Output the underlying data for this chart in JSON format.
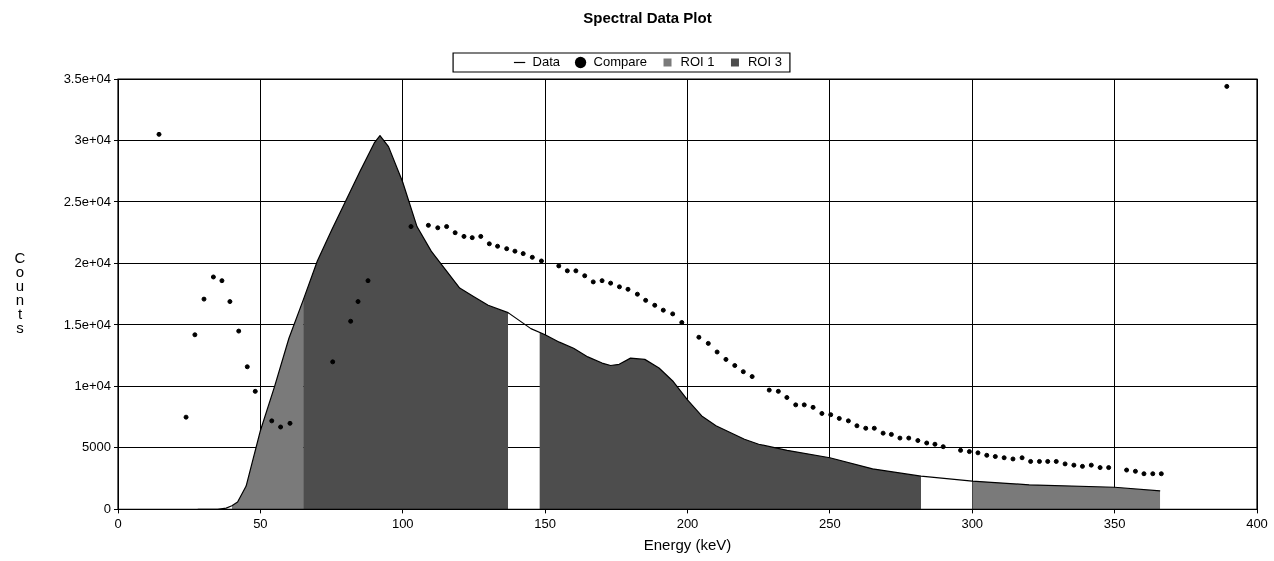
{
  "chart_data": {
    "type": "line",
    "title": "Spectral Data Plot",
    "xlabel": "Energy (keV)",
    "ylabel": "Counts",
    "legend": "top",
    "grid": true,
    "xlim": [
      0,
      400
    ],
    "xticks": [
      0,
      50,
      100,
      150,
      200,
      250,
      300,
      350,
      400
    ],
    "ylim": [
      0,
      35000
    ],
    "yticks": [
      {
        "value": 0,
        "label": "0"
      },
      {
        "value": 5000,
        "label": "5000"
      },
      {
        "value": 10000,
        "label": "1e+04"
      },
      {
        "value": 15000,
        "label": "1.5e+04"
      },
      {
        "value": 20000,
        "label": "2e+04"
      },
      {
        "value": 25000,
        "label": "2.5e+04"
      },
      {
        "value": 30000,
        "label": "3e+04"
      },
      {
        "value": 35000,
        "label": "3.5e+04"
      }
    ],
    "series": [
      {
        "name": "Data",
        "type": "line",
        "marker": "none",
        "color": "#000000",
        "x": [
          28,
          35,
          38,
          40,
          42,
          45,
          50,
          55,
          60,
          65,
          70,
          75,
          80,
          85,
          90,
          92,
          95,
          100,
          105,
          110,
          115,
          120,
          125,
          130,
          137,
          145,
          150,
          155,
          160,
          165,
          170,
          173,
          176,
          180,
          185,
          190,
          195,
          200,
          205,
          210,
          220,
          225,
          235,
          250,
          265,
          282,
          300,
          320,
          350,
          366
        ],
        "values": [
          0,
          0,
          100,
          300,
          600,
          1900,
          6400,
          10000,
          13900,
          17000,
          20200,
          22700,
          25100,
          27500,
          29800,
          30400,
          29500,
          26600,
          23000,
          21000,
          19500,
          18000,
          17300,
          16600,
          16000,
          14700,
          14200,
          13600,
          13100,
          12400,
          11900,
          11700,
          11800,
          12300,
          12200,
          11500,
          10400,
          8900,
          7600,
          6800,
          5700,
          5300,
          4800,
          4200,
          3300,
          2700,
          2300,
          2000,
          1800,
          1500
        ]
      },
      {
        "name": "Compare",
        "type": "scatter",
        "marker": "circle",
        "color": "#000000",
        "x": [
          14.4,
          23.9,
          27.0,
          30.2,
          33.5,
          36.5,
          39.3,
          42.4,
          45.4,
          48.2,
          54.0,
          57.1,
          60.4,
          75.4,
          81.7,
          84.3,
          87.8,
          102.9,
          109.0,
          112.3,
          115.4,
          118.4,
          121.5,
          124.4,
          127.4,
          130.4,
          133.3,
          136.5,
          139.4,
          142.3,
          145.5,
          148.7,
          154.8,
          157.8,
          160.8,
          163.9,
          166.9,
          170.0,
          173.0,
          176.1,
          179.1,
          182.4,
          185.3,
          188.5,
          191.5,
          194.8,
          198.0,
          204.0,
          207.3,
          210.4,
          213.5,
          216.6,
          219.6,
          222.7,
          228.7,
          231.9,
          234.9,
          238.0,
          241.0,
          244.1,
          247.2,
          250.3,
          253.3,
          256.5,
          259.5,
          262.6,
          265.6,
          268.7,
          271.6,
          274.6,
          277.7,
          280.9,
          284.0,
          286.9,
          289.8,
          295.9,
          299.0,
          302.0,
          305.1,
          308.1,
          311.2,
          314.3,
          317.5,
          320.5,
          323.6,
          326.5,
          329.5,
          332.6,
          335.7,
          338.7,
          341.8,
          344.9,
          347.9,
          354.2,
          357.3,
          360.3,
          363.4,
          366.4,
          389.4
        ],
        "values": [
          30500,
          7500,
          14200,
          17100,
          18900,
          18600,
          16900,
          14500,
          11600,
          9600,
          7200,
          6700,
          7000,
          12000,
          15300,
          16900,
          18600,
          23000,
          23100,
          22900,
          23000,
          22500,
          22200,
          22100,
          22200,
          21600,
          21400,
          21200,
          21000,
          20800,
          20500,
          20200,
          19800,
          19400,
          19400,
          19000,
          18500,
          18600,
          18400,
          18100,
          17900,
          17500,
          17000,
          16600,
          16200,
          15900,
          15200,
          14000,
          13500,
          12800,
          12200,
          11700,
          11200,
          10800,
          9700,
          9600,
          9100,
          8500,
          8500,
          8300,
          7800,
          7700,
          7400,
          7200,
          6800,
          6600,
          6600,
          6200,
          6100,
          5800,
          5800,
          5600,
          5400,
          5300,
          5100,
          4800,
          4700,
          4600,
          4400,
          4300,
          4200,
          4100,
          4200,
          3900,
          3900,
          3900,
          3900,
          3700,
          3600,
          3500,
          3600,
          3400,
          3400,
          3200,
          3100,
          2900,
          2900,
          2900,
          34400
        ]
      },
      {
        "name": "ROI 1",
        "type": "area",
        "color": "#7a7a7a",
        "x": [
          40,
          42,
          45,
          50,
          55,
          60,
          65,
          182,
          300,
          320,
          350,
          366
        ],
        "values": [
          300,
          600,
          1900,
          6400,
          10000,
          13900,
          17000,
          null,
          2300,
          2000,
          1800,
          1500
        ]
      },
      {
        "name": "ROI 3",
        "type": "area",
        "color": "#4d4d4d",
        "x": [
          65,
          70,
          75,
          80,
          85,
          90,
          92,
          95,
          100,
          105,
          110,
          115,
          120,
          125,
          130,
          137,
          142,
          148,
          150,
          155,
          160,
          165,
          170,
          173,
          176,
          180,
          185,
          190,
          195,
          200,
          205,
          210,
          220,
          225,
          235,
          250,
          265,
          282
        ],
        "values": [
          17000,
          20200,
          22700,
          25100,
          27500,
          29800,
          30400,
          29500,
          26600,
          23000,
          21000,
          19500,
          18000,
          17300,
          16600,
          16000,
          null,
          14400,
          14200,
          13600,
          13100,
          12400,
          11900,
          11700,
          11800,
          12300,
          12200,
          11500,
          10400,
          8900,
          7600,
          6800,
          5700,
          5300,
          4800,
          4200,
          3300,
          2700
        ]
      }
    ]
  }
}
